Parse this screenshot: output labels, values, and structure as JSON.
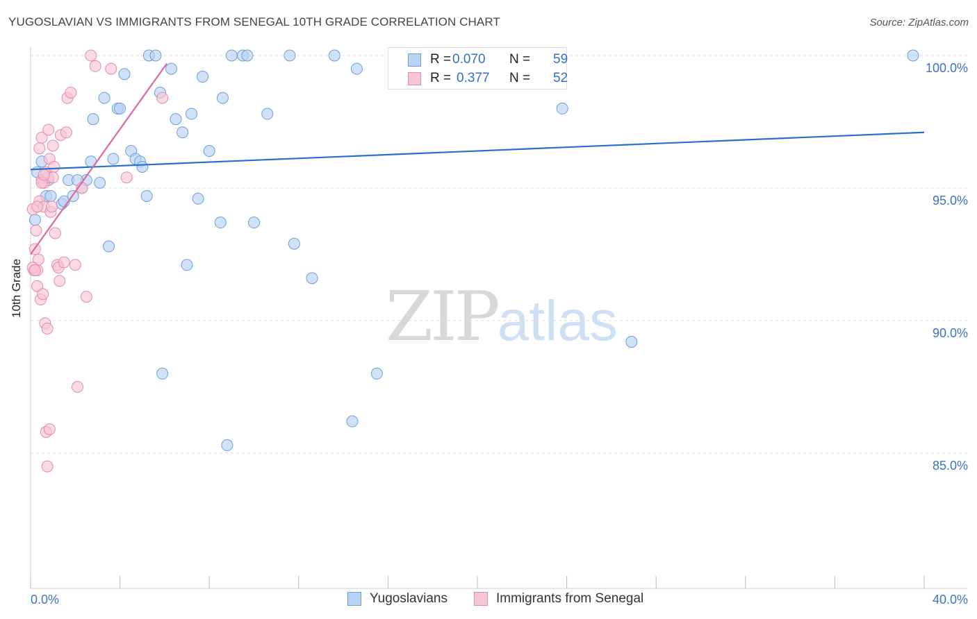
{
  "header": {
    "title": "YUGOSLAVIAN VS IMMIGRANTS FROM SENEGAL 10TH GRADE CORRELATION CHART",
    "source": "Source: ZipAtlas.com"
  },
  "legend_top": {
    "rows": [
      {
        "r_label": "R =",
        "r_value": "0.070",
        "n_label": "N =",
        "n_value": "59"
      },
      {
        "r_label": "R =",
        "r_value": "0.377",
        "n_label": "N =",
        "n_value": "52"
      }
    ]
  },
  "legend_bottom": {
    "series1": "Yugoslavians",
    "series2": "Immigrants from Senegal"
  },
  "watermark": {
    "zip": "ZIP",
    "atlas": "atlas"
  },
  "colors": {
    "blue_fill": "#b9d3f2",
    "blue_stroke": "#6a9ee0",
    "blue_line": "#2a6fcc",
    "pink_fill": "#f7c6d6",
    "pink_stroke": "#e68aa8",
    "pink_line": "#e0669a",
    "tick_text": "#3d72c9",
    "grid": "#dddddd"
  },
  "chart_data": {
    "type": "scatter",
    "title": "YUGOSLAVIAN VS IMMIGRANTS FROM SENEGAL 10TH GRADE CORRELATION CHART",
    "xlabel": "",
    "ylabel": "10th Grade",
    "xlim": [
      0,
      40
    ],
    "ylim": [
      80.5,
      100.8
    ],
    "x_tick_labels": [
      {
        "value": 0,
        "label": "0.0%"
      },
      {
        "value": 40,
        "label": "40.0%"
      }
    ],
    "x_minor_ticks": [
      0,
      4,
      8,
      12,
      16,
      20,
      24,
      28,
      32,
      36,
      40
    ],
    "y_ticks": [
      {
        "value": 100,
        "label": "100.0%"
      },
      {
        "value": 95,
        "label": "95.0%"
      },
      {
        "value": 90,
        "label": "90.0%"
      },
      {
        "value": 85,
        "label": "85.0%"
      }
    ],
    "grid": true,
    "series": [
      {
        "name": "Yugoslavians",
        "R": 0.07,
        "N": 59,
        "trend": {
          "x": [
            0,
            40
          ],
          "y": [
            95.7,
            97.1
          ]
        },
        "points": [
          [
            0.3,
            95.6
          ],
          [
            0.5,
            96.0
          ],
          [
            0.7,
            94.7
          ],
          [
            0.8,
            95.3
          ],
          [
            0.9,
            94.7
          ],
          [
            1.4,
            94.4
          ],
          [
            1.5,
            94.5
          ],
          [
            1.7,
            95.3
          ],
          [
            1.9,
            94.7
          ],
          [
            2.3,
            95.0
          ],
          [
            2.5,
            95.3
          ],
          [
            2.7,
            96.0
          ],
          [
            2.8,
            97.6
          ],
          [
            3.1,
            95.2
          ],
          [
            3.3,
            98.4
          ],
          [
            3.5,
            92.8
          ],
          [
            3.7,
            96.1
          ],
          [
            3.9,
            98.0
          ],
          [
            4.0,
            98.0
          ],
          [
            4.2,
            99.3
          ],
          [
            4.5,
            96.4
          ],
          [
            4.7,
            96.1
          ],
          [
            4.9,
            96.0
          ],
          [
            5.0,
            95.8
          ],
          [
            5.2,
            94.7
          ],
          [
            5.3,
            100.0
          ],
          [
            5.6,
            100.0
          ],
          [
            5.8,
            98.6
          ],
          [
            5.9,
            88.0
          ],
          [
            6.3,
            99.5
          ],
          [
            6.5,
            97.6
          ],
          [
            6.8,
            97.1
          ],
          [
            7.0,
            92.1
          ],
          [
            7.2,
            97.8
          ],
          [
            7.5,
            94.6
          ],
          [
            7.7,
            99.2
          ],
          [
            8.0,
            96.4
          ],
          [
            8.5,
            93.7
          ],
          [
            8.6,
            98.4
          ],
          [
            8.8,
            85.3
          ],
          [
            9.0,
            100.0
          ],
          [
            9.5,
            100.0
          ],
          [
            9.7,
            100.0
          ],
          [
            10.0,
            93.7
          ],
          [
            10.6,
            97.8
          ],
          [
            11.6,
            100.0
          ],
          [
            11.8,
            92.9
          ],
          [
            12.6,
            91.6
          ],
          [
            13.6,
            100.0
          ],
          [
            14.4,
            86.2
          ],
          [
            14.6,
            99.5
          ],
          [
            15.5,
            88.0
          ],
          [
            18.7,
            100.0
          ],
          [
            23.3,
            100.0
          ],
          [
            23.8,
            98.0
          ],
          [
            26.9,
            89.2
          ],
          [
            39.5,
            100.0
          ],
          [
            0.2,
            93.8
          ],
          [
            2.1,
            95.3
          ]
        ]
      },
      {
        "name": "Immigrants from Senegal",
        "R": 0.377,
        "N": 52,
        "trend": {
          "x": [
            0,
            6.1
          ],
          "y": [
            92.5,
            99.7
          ]
        },
        "points": [
          [
            0.1,
            94.2
          ],
          [
            0.15,
            91.9
          ],
          [
            0.2,
            92.7
          ],
          [
            0.25,
            93.4
          ],
          [
            0.3,
            91.9
          ],
          [
            0.3,
            91.3
          ],
          [
            0.35,
            92.3
          ],
          [
            0.4,
            94.5
          ],
          [
            0.4,
            96.5
          ],
          [
            0.45,
            90.8
          ],
          [
            0.5,
            95.3
          ],
          [
            0.5,
            96.9
          ],
          [
            0.55,
            91.0
          ],
          [
            0.6,
            94.3
          ],
          [
            0.6,
            95.2
          ],
          [
            0.65,
            89.9
          ],
          [
            0.7,
            95.6
          ],
          [
            0.75,
            89.7
          ],
          [
            0.8,
            97.2
          ],
          [
            0.8,
            95.4
          ],
          [
            0.85,
            96.1
          ],
          [
            0.9,
            94.1
          ],
          [
            0.95,
            94.3
          ],
          [
            1.0,
            96.6
          ],
          [
            1.05,
            95.8
          ],
          [
            1.1,
            93.3
          ],
          [
            1.2,
            92.1
          ],
          [
            1.25,
            92.0
          ],
          [
            1.35,
            97.0
          ],
          [
            1.5,
            92.2
          ],
          [
            1.65,
            98.4
          ],
          [
            1.8,
            98.6
          ],
          [
            2.0,
            92.1
          ],
          [
            2.5,
            90.9
          ],
          [
            2.7,
            100.0
          ],
          [
            2.9,
            99.6
          ],
          [
            3.6,
            99.5
          ],
          [
            4.3,
            95.4
          ],
          [
            5.9,
            98.4
          ],
          [
            2.1,
            87.5
          ],
          [
            0.7,
            85.8
          ],
          [
            0.85,
            85.9
          ],
          [
            0.75,
            84.5
          ],
          [
            1.3,
            91.5
          ],
          [
            0.5,
            95.2
          ],
          [
            1.0,
            95.4
          ],
          [
            0.3,
            94.3
          ],
          [
            2.3,
            95.0
          ],
          [
            0.1,
            92.0
          ],
          [
            0.2,
            91.9
          ],
          [
            1.6,
            97.1
          ],
          [
            0.6,
            95.5
          ]
        ]
      }
    ]
  }
}
